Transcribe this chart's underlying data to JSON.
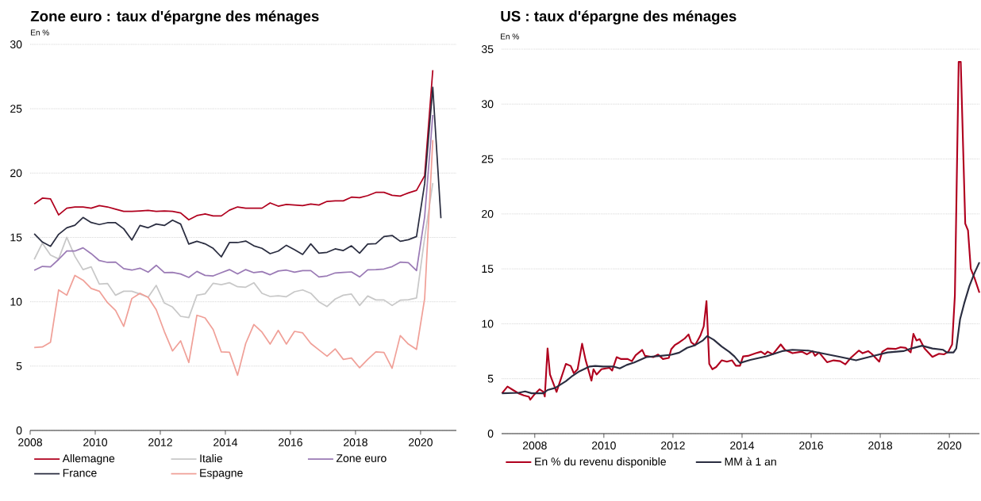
{
  "chart_data": [
    {
      "type": "line",
      "title": "Zone euro : taux d'épargne des ménages",
      "ylabel": "En %",
      "x": [
        2008.125,
        2008.375,
        2008.625,
        2008.875,
        2009.125,
        2009.375,
        2009.625,
        2009.875,
        2010.125,
        2010.375,
        2010.625,
        2010.875,
        2011.125,
        2011.375,
        2011.625,
        2011.875,
        2012.125,
        2012.375,
        2012.625,
        2012.875,
        2013.125,
        2013.375,
        2013.625,
        2013.875,
        2014.125,
        2014.375,
        2014.625,
        2014.875,
        2015.125,
        2015.375,
        2015.625,
        2015.875,
        2016.125,
        2016.375,
        2016.625,
        2016.875,
        2017.125,
        2017.375,
        2017.625,
        2017.875,
        2018.125,
        2018.375,
        2018.625,
        2018.875,
        2019.125,
        2019.375,
        2019.625,
        2019.875,
        2020.125,
        2020.375,
        2020.625
      ],
      "xlim": [
        2008,
        2021.1
      ],
      "ylim": [
        0,
        30
      ],
      "xticks": [
        2008,
        2010,
        2012,
        2014,
        2016,
        2018,
        2020
      ],
      "yticks": [
        0,
        5,
        10,
        15,
        20,
        25,
        30
      ],
      "grid": "y",
      "legend": "bottom",
      "series": [
        {
          "name": "Allemagne",
          "color": "#b0001e",
          "values": [
            17.6,
            18.05,
            18.0,
            16.75,
            17.27,
            17.37,
            17.37,
            17.27,
            17.47,
            17.37,
            17.19,
            17.02,
            17.02,
            17.06,
            17.1,
            17.02,
            17.06,
            17.02,
            16.9,
            16.37,
            16.7,
            16.82,
            16.67,
            16.67,
            17.12,
            17.37,
            17.27,
            17.27,
            17.27,
            17.68,
            17.43,
            17.56,
            17.52,
            17.47,
            17.6,
            17.52,
            17.8,
            17.84,
            17.84,
            18.13,
            18.09,
            18.25,
            18.5,
            18.5,
            18.27,
            18.21,
            18.46,
            18.66,
            19.8,
            28.0,
            null
          ]
        },
        {
          "name": "Italie",
          "color": "#c8c8c8",
          "values": [
            13.29,
            14.56,
            13.63,
            13.33,
            15.01,
            13.53,
            12.5,
            12.71,
            11.38,
            11.42,
            10.51,
            10.82,
            10.82,
            10.6,
            10.35,
            11.27,
            9.9,
            9.59,
            8.87,
            8.77,
            10.51,
            10.62,
            11.44,
            11.33,
            11.48,
            11.17,
            11.13,
            11.48,
            10.66,
            10.41,
            10.47,
            10.39,
            10.78,
            10.92,
            10.66,
            10.0,
            9.63,
            10.21,
            10.51,
            10.6,
            9.71,
            10.45,
            10.14,
            10.14,
            9.71,
            10.12,
            10.16,
            10.29,
            14.97,
            19.22,
            null
          ]
        },
        {
          "name": "Zone euro",
          "color": "#9a7ab5",
          "values": [
            12.44,
            12.75,
            12.71,
            13.29,
            13.94,
            13.94,
            14.19,
            13.74,
            13.2,
            13.06,
            13.08,
            12.57,
            12.46,
            12.61,
            12.3,
            12.83,
            12.26,
            12.28,
            12.16,
            11.89,
            12.36,
            12.05,
            12.01,
            12.26,
            12.5,
            12.16,
            12.5,
            12.26,
            12.34,
            12.1,
            12.39,
            12.46,
            12.3,
            12.42,
            12.42,
            11.93,
            12.01,
            12.24,
            12.28,
            12.32,
            11.93,
            12.48,
            12.5,
            12.55,
            12.73,
            13.08,
            13.04,
            12.42,
            16.6,
            24.52,
            null
          ]
        },
        {
          "name": "France",
          "color": "#2a2d40",
          "values": [
            15.28,
            14.64,
            14.31,
            15.24,
            15.75,
            15.95,
            16.55,
            16.16,
            16.0,
            16.14,
            16.14,
            15.67,
            14.8,
            15.93,
            15.75,
            16.04,
            15.93,
            16.34,
            16.04,
            14.48,
            14.7,
            14.5,
            14.15,
            13.49,
            14.6,
            14.6,
            14.72,
            14.35,
            14.15,
            13.74,
            13.94,
            14.39,
            14.05,
            13.68,
            14.5,
            13.78,
            13.84,
            14.11,
            13.98,
            14.35,
            13.78,
            14.48,
            14.52,
            15.07,
            15.15,
            14.7,
            14.82,
            15.07,
            19.18,
            26.67,
            16.49
          ]
        },
        {
          "name": "Espagne",
          "color": "#f0a098",
          "values": [
            6.45,
            6.49,
            6.86,
            10.92,
            10.51,
            12.05,
            11.68,
            11.03,
            10.82,
            9.94,
            9.32,
            8.09,
            10.25,
            10.66,
            10.35,
            9.38,
            7.68,
            6.18,
            6.96,
            5.28,
            8.95,
            8.75,
            7.84,
            6.1,
            6.08,
            4.29,
            6.76,
            8.23,
            7.64,
            6.71,
            7.78,
            6.71,
            7.7,
            7.58,
            6.76,
            6.26,
            5.77,
            6.34,
            5.52,
            5.63,
            4.87,
            5.52,
            6.1,
            6.06,
            4.83,
            7.37,
            6.71,
            6.3,
            10.25,
            22.57,
            null
          ]
        }
      ]
    },
    {
      "type": "line",
      "title": "US : taux d'épargne des ménages",
      "ylabel": "En %",
      "xlim": [
        2007.04,
        2020.87
      ],
      "ylim": [
        0,
        35
      ],
      "xticks": [
        2008,
        2010,
        2012,
        2014,
        2016,
        2018,
        2020
      ],
      "yticks": [
        0,
        5,
        10,
        15,
        20,
        25,
        30,
        35
      ],
      "grid": "y",
      "legend": "bottom",
      "series": [
        {
          "name": "En % du revenu disponible",
          "color": "#b0001e",
          "x": [
            2007.05,
            2007.21,
            2007.37,
            2007.53,
            2007.68,
            2007.83,
            2007.87,
            2007.98,
            2008.14,
            2008.25,
            2008.29,
            2008.37,
            2008.44,
            2008.63,
            2008.9,
            2009.04,
            2009.13,
            2009.24,
            2009.37,
            2009.47,
            2009.64,
            2009.7,
            2009.79,
            2009.93,
            2010.16,
            2010.24,
            2010.37,
            2010.5,
            2010.69,
            2010.81,
            2010.92,
            2011.11,
            2011.19,
            2011.43,
            2011.57,
            2011.71,
            2011.88,
            2011.95,
            2012.05,
            2012.18,
            2012.34,
            2012.45,
            2012.53,
            2012.64,
            2012.79,
            2012.89,
            2012.97,
            2013.05,
            2013.14,
            2013.25,
            2013.41,
            2013.56,
            2013.71,
            2013.82,
            2013.94,
            2014.03,
            2014.17,
            2014.4,
            2014.55,
            2014.66,
            2014.74,
            2014.89,
            2015.12,
            2015.24,
            2015.46,
            2015.73,
            2015.88,
            2016.04,
            2016.11,
            2016.23,
            2016.46,
            2016.65,
            2016.84,
            2016.99,
            2017.15,
            2017.38,
            2017.49,
            2017.65,
            2017.75,
            2017.97,
            2018.06,
            2018.21,
            2018.44,
            2018.59,
            2018.74,
            2018.88,
            2018.96,
            2019.05,
            2019.14,
            2019.28,
            2019.51,
            2019.7,
            2019.85,
            2019.97,
            2020.08,
            2020.16,
            2020.27,
            2020.33,
            2020.46,
            2020.54,
            2020.62,
            2020.73,
            2020.87
          ],
          "values": [
            3.67,
            4.28,
            3.97,
            3.67,
            3.48,
            3.36,
            3.09,
            3.53,
            4.04,
            3.8,
            3.38,
            7.76,
            5.38,
            3.8,
            6.35,
            6.16,
            5.5,
            5.86,
            8.18,
            6.72,
            4.82,
            5.86,
            5.38,
            5.86,
            5.99,
            5.74,
            6.96,
            6.79,
            6.79,
            6.59,
            7.13,
            7.62,
            7.08,
            6.96,
            7.2,
            6.79,
            6.89,
            7.69,
            8.05,
            8.3,
            8.66,
            9.03,
            8.3,
            8.05,
            8.91,
            9.76,
            12.07,
            6.35,
            5.86,
            6.06,
            6.67,
            6.55,
            6.67,
            6.18,
            6.18,
            7.03,
            7.08,
            7.32,
            7.46,
            7.22,
            7.46,
            7.22,
            8.12,
            7.63,
            7.32,
            7.46,
            7.22,
            7.51,
            7.08,
            7.39,
            6.5,
            6.67,
            6.59,
            6.3,
            6.91,
            7.56,
            7.32,
            7.51,
            7.27,
            6.55,
            7.46,
            7.75,
            7.71,
            7.87,
            7.8,
            7.39,
            9.08,
            8.48,
            8.6,
            7.75,
            6.98,
            7.27,
            7.22,
            7.46,
            8.12,
            12.58,
            33.84,
            33.84,
            19.11,
            18.5,
            15.0,
            14.15,
            12.83
          ]
        },
        {
          "name": "MM à 1 an",
          "color": "#2a2d40",
          "x": [
            2007.05,
            2007.53,
            2007.72,
            2007.91,
            2008.25,
            2008.37,
            2008.59,
            2008.9,
            2009.06,
            2009.29,
            2009.59,
            2009.75,
            2009.98,
            2010.27,
            2010.46,
            2010.66,
            2010.88,
            2011.23,
            2011.65,
            2011.95,
            2012.18,
            2012.41,
            2012.64,
            2012.87,
            2012.99,
            2013.18,
            2013.41,
            2013.63,
            2013.78,
            2013.94,
            2014.24,
            2014.7,
            2015.16,
            2015.46,
            2015.92,
            2016.38,
            2016.84,
            2017.3,
            2017.75,
            2018.21,
            2018.67,
            2018.9,
            2019.21,
            2019.51,
            2019.82,
            2019.93,
            2020.12,
            2020.2,
            2020.31,
            2020.43,
            2020.58,
            2020.73,
            2020.87
          ],
          "values": [
            3.67,
            3.72,
            3.84,
            3.67,
            3.67,
            3.97,
            4.16,
            4.77,
            5.18,
            5.67,
            6.11,
            6.16,
            6.11,
            6.11,
            5.94,
            6.25,
            6.47,
            6.96,
            7.08,
            7.18,
            7.37,
            7.81,
            8.05,
            8.49,
            8.88,
            8.54,
            7.93,
            7.44,
            7.03,
            6.43,
            6.71,
            7.03,
            7.51,
            7.63,
            7.56,
            7.27,
            6.98,
            6.67,
            7.03,
            7.39,
            7.51,
            7.75,
            8.0,
            7.75,
            7.63,
            7.39,
            7.39,
            7.75,
            10.41,
            11.86,
            13.43,
            14.64,
            15.6
          ]
        }
      ]
    }
  ]
}
